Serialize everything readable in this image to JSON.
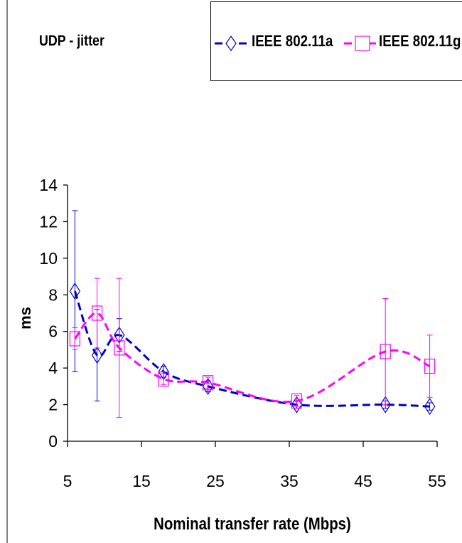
{
  "chart_data": {
    "type": "line",
    "title": "UDP - jitter",
    "xlabel": "Nominal transfer rate (Mbps)",
    "ylabel": "ms",
    "xlim": [
      5,
      55
    ],
    "ylim": [
      0,
      14
    ],
    "x_ticks": [
      5,
      15,
      25,
      35,
      45,
      55
    ],
    "y_ticks": [
      0,
      2,
      4,
      6,
      8,
      10,
      12,
      14
    ],
    "grid": false,
    "legend_position": "top-right",
    "series": [
      {
        "name": "IEEE 802.11a",
        "color": "#0000cc",
        "marker": "diamond",
        "line_style": "dashed",
        "x": [
          6,
          9,
          12,
          18,
          24,
          36,
          48,
          54
        ],
        "y": [
          8.2,
          4.7,
          5.8,
          3.8,
          3.0,
          2.0,
          2.0,
          1.9
        ],
        "error": [
          4.4,
          2.5,
          0.9,
          0.3,
          0.3,
          0.2,
          0.2,
          0.2
        ]
      },
      {
        "name": "IEEE 802.11g",
        "color": "#ff00ff",
        "marker": "square",
        "line_style": "dashed",
        "x": [
          6,
          9,
          12,
          18,
          24,
          36,
          48,
          54
        ],
        "y": [
          5.6,
          7.0,
          5.1,
          3.4,
          3.2,
          2.2,
          4.9,
          4.1
        ],
        "error": [
          0.6,
          1.9,
          3.8,
          0.3,
          0.3,
          0.3,
          2.9,
          1.7
        ]
      }
    ]
  }
}
